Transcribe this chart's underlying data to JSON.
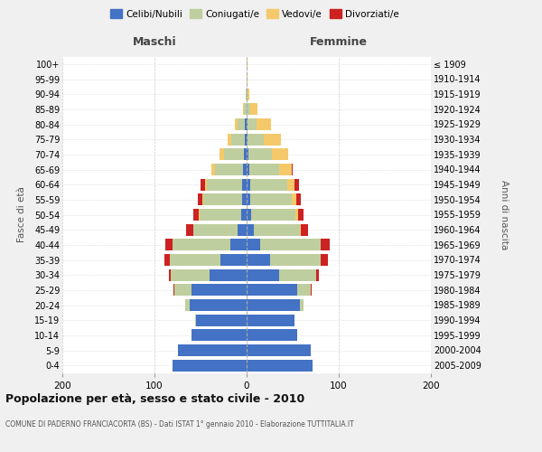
{
  "age_groups": [
    "0-4",
    "5-9",
    "10-14",
    "15-19",
    "20-24",
    "25-29",
    "30-34",
    "35-39",
    "40-44",
    "45-49",
    "50-54",
    "55-59",
    "60-64",
    "65-69",
    "70-74",
    "75-79",
    "80-84",
    "85-89",
    "90-94",
    "95-99",
    "100+"
  ],
  "birth_years": [
    "2005-2009",
    "2000-2004",
    "1995-1999",
    "1990-1994",
    "1985-1989",
    "1980-1984",
    "1975-1979",
    "1970-1974",
    "1965-1969",
    "1960-1964",
    "1955-1959",
    "1950-1954",
    "1945-1949",
    "1940-1944",
    "1935-1939",
    "1930-1934",
    "1925-1929",
    "1920-1924",
    "1915-1919",
    "1910-1914",
    "≤ 1909"
  ],
  "colors": {
    "celibe": "#4472C4",
    "coniugato": "#BFCE9E",
    "vedovo": "#F5C96A",
    "divorziato": "#CC2222"
  },
  "maschi": {
    "celibe": [
      80,
      75,
      60,
      55,
      62,
      60,
      40,
      28,
      18,
      10,
      6,
      5,
      5,
      4,
      3,
      2,
      2,
      0,
      0,
      0,
      0
    ],
    "coniugato": [
      0,
      0,
      0,
      1,
      5,
      18,
      42,
      55,
      62,
      48,
      45,
      42,
      38,
      30,
      22,
      15,
      8,
      3,
      1,
      0,
      0
    ],
    "vedovo": [
      0,
      0,
      0,
      0,
      0,
      0,
      0,
      0,
      0,
      0,
      1,
      1,
      2,
      4,
      4,
      4,
      3,
      1,
      0,
      0,
      0
    ],
    "divorziato": [
      0,
      0,
      0,
      0,
      0,
      1,
      2,
      6,
      8,
      8,
      6,
      5,
      5,
      0,
      0,
      0,
      0,
      0,
      0,
      0,
      0
    ]
  },
  "femmine": {
    "celibe": [
      72,
      70,
      55,
      52,
      58,
      55,
      35,
      25,
      15,
      8,
      5,
      4,
      4,
      3,
      2,
      1,
      1,
      0,
      0,
      0,
      0
    ],
    "coniugato": [
      0,
      0,
      0,
      0,
      4,
      15,
      40,
      55,
      65,
      50,
      48,
      45,
      40,
      32,
      25,
      18,
      10,
      4,
      1,
      0,
      0
    ],
    "vedovo": [
      0,
      0,
      0,
      0,
      0,
      0,
      0,
      0,
      0,
      1,
      3,
      5,
      8,
      14,
      18,
      18,
      15,
      8,
      2,
      1,
      1
    ],
    "divorziato": [
      0,
      0,
      0,
      0,
      0,
      1,
      3,
      8,
      10,
      8,
      6,
      5,
      5,
      1,
      0,
      0,
      0,
      0,
      0,
      0,
      0
    ]
  },
  "title": "Popolazione per età, sesso e stato civile - 2010",
  "subtitle": "COMUNE DI PADERNO FRANCIACORTA (BS) - Dati ISTAT 1° gennaio 2010 - Elaborazione TUTTITALIA.IT",
  "xlabel_left": "Maschi",
  "xlabel_right": "Femmine",
  "ylabel_left": "Fasce di età",
  "ylabel_right": "Anni di nascita",
  "xlim": 200,
  "background_color": "#f0f0f0",
  "plot_bg_color": "#ffffff",
  "legend_labels": [
    "Celibi/Nubili",
    "Coniugati/e",
    "Vedovi/e",
    "Divorziati/e"
  ]
}
